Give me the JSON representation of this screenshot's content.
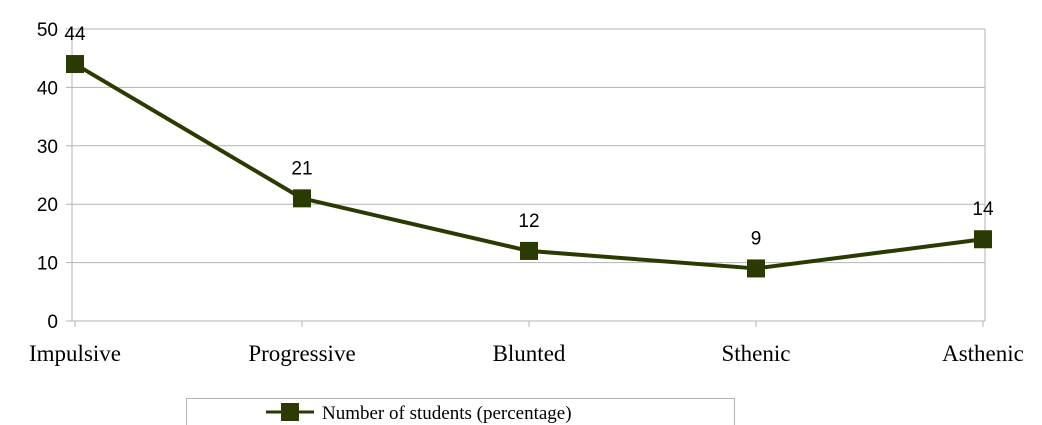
{
  "chart_data": {
    "type": "line",
    "title": "",
    "xlabel": "",
    "ylabel": "",
    "categories": [
      "Impulsive",
      "Progressive",
      "Blunted",
      "Sthenic",
      "Asthenic"
    ],
    "series": [
      {
        "name": "Number of students (percentage)",
        "values": [
          44,
          21,
          12,
          9,
          14
        ],
        "color": "#2a3a00"
      }
    ],
    "ylim": [
      0,
      50
    ],
    "yticks": [
      0,
      10,
      20,
      30,
      40,
      50
    ],
    "grid": "horizontal",
    "data_labels": true,
    "legend_position": "bottom",
    "marker": "square",
    "colors": {
      "grid": "#b3b3b3",
      "axis": "#b3b3b3",
      "series": "#2a3a00"
    }
  }
}
